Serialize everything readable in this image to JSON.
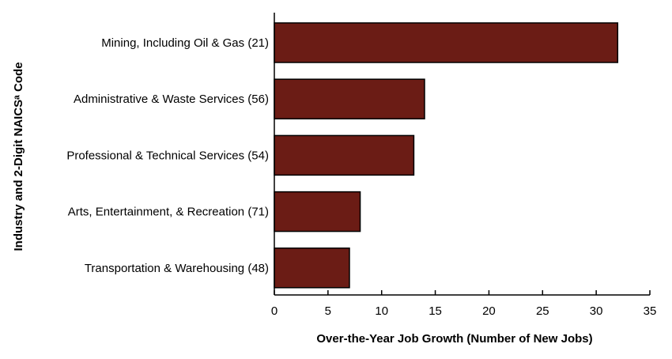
{
  "chart_data": {
    "type": "bar",
    "orientation": "horizontal",
    "categories": [
      "Mining, Including Oil & Gas (21)",
      "Administrative & Waste Services (56)",
      "Professional & Technical Services (54)",
      "Arts, Entertainment, & Recreation (71)",
      "Transportation & Warehousing (48)"
    ],
    "values": [
      32,
      14,
      13,
      8,
      7
    ],
    "xlabel": "Over-the-Year Job Growth (Number of New Jobs)",
    "ylabel": "Industry and 2-Digit NAICSᵃ Code",
    "xlim": [
      0,
      35
    ],
    "xticks": [
      0,
      5,
      10,
      15,
      20,
      25,
      30,
      35
    ],
    "grid": false,
    "bar_color": "#6b1c15"
  }
}
